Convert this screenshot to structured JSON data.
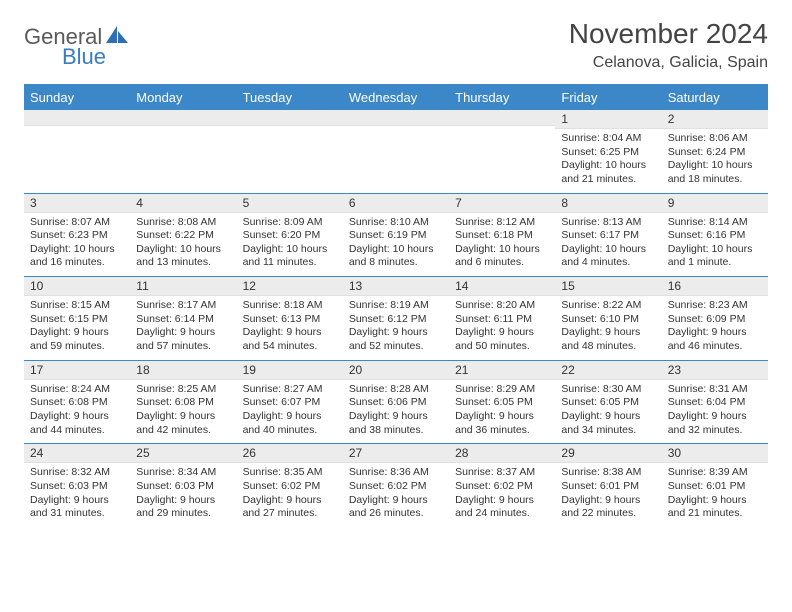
{
  "logo": {
    "part1": "General",
    "part2": "Blue"
  },
  "title": "November 2024",
  "location": "Celanova, Galicia, Spain",
  "colors": {
    "header_bg": "#3c87c7",
    "header_text": "#ffffff",
    "daynum_bg": "#ececec",
    "border": "#3c87c7",
    "text": "#333333",
    "logo_gray": "#5a5a5a",
    "logo_blue": "#3a7cc4"
  },
  "dow": [
    "Sunday",
    "Monday",
    "Tuesday",
    "Wednesday",
    "Thursday",
    "Friday",
    "Saturday"
  ],
  "weeks": [
    [
      {
        "n": "",
        "sr": "",
        "ss": "",
        "dl": ""
      },
      {
        "n": "",
        "sr": "",
        "ss": "",
        "dl": ""
      },
      {
        "n": "",
        "sr": "",
        "ss": "",
        "dl": ""
      },
      {
        "n": "",
        "sr": "",
        "ss": "",
        "dl": ""
      },
      {
        "n": "",
        "sr": "",
        "ss": "",
        "dl": ""
      },
      {
        "n": "1",
        "sr": "Sunrise: 8:04 AM",
        "ss": "Sunset: 6:25 PM",
        "dl": "Daylight: 10 hours and 21 minutes."
      },
      {
        "n": "2",
        "sr": "Sunrise: 8:06 AM",
        "ss": "Sunset: 6:24 PM",
        "dl": "Daylight: 10 hours and 18 minutes."
      }
    ],
    [
      {
        "n": "3",
        "sr": "Sunrise: 8:07 AM",
        "ss": "Sunset: 6:23 PM",
        "dl": "Daylight: 10 hours and 16 minutes."
      },
      {
        "n": "4",
        "sr": "Sunrise: 8:08 AM",
        "ss": "Sunset: 6:22 PM",
        "dl": "Daylight: 10 hours and 13 minutes."
      },
      {
        "n": "5",
        "sr": "Sunrise: 8:09 AM",
        "ss": "Sunset: 6:20 PM",
        "dl": "Daylight: 10 hours and 11 minutes."
      },
      {
        "n": "6",
        "sr": "Sunrise: 8:10 AM",
        "ss": "Sunset: 6:19 PM",
        "dl": "Daylight: 10 hours and 8 minutes."
      },
      {
        "n": "7",
        "sr": "Sunrise: 8:12 AM",
        "ss": "Sunset: 6:18 PM",
        "dl": "Daylight: 10 hours and 6 minutes."
      },
      {
        "n": "8",
        "sr": "Sunrise: 8:13 AM",
        "ss": "Sunset: 6:17 PM",
        "dl": "Daylight: 10 hours and 4 minutes."
      },
      {
        "n": "9",
        "sr": "Sunrise: 8:14 AM",
        "ss": "Sunset: 6:16 PM",
        "dl": "Daylight: 10 hours and 1 minute."
      }
    ],
    [
      {
        "n": "10",
        "sr": "Sunrise: 8:15 AM",
        "ss": "Sunset: 6:15 PM",
        "dl": "Daylight: 9 hours and 59 minutes."
      },
      {
        "n": "11",
        "sr": "Sunrise: 8:17 AM",
        "ss": "Sunset: 6:14 PM",
        "dl": "Daylight: 9 hours and 57 minutes."
      },
      {
        "n": "12",
        "sr": "Sunrise: 8:18 AM",
        "ss": "Sunset: 6:13 PM",
        "dl": "Daylight: 9 hours and 54 minutes."
      },
      {
        "n": "13",
        "sr": "Sunrise: 8:19 AM",
        "ss": "Sunset: 6:12 PM",
        "dl": "Daylight: 9 hours and 52 minutes."
      },
      {
        "n": "14",
        "sr": "Sunrise: 8:20 AM",
        "ss": "Sunset: 6:11 PM",
        "dl": "Daylight: 9 hours and 50 minutes."
      },
      {
        "n": "15",
        "sr": "Sunrise: 8:22 AM",
        "ss": "Sunset: 6:10 PM",
        "dl": "Daylight: 9 hours and 48 minutes."
      },
      {
        "n": "16",
        "sr": "Sunrise: 8:23 AM",
        "ss": "Sunset: 6:09 PM",
        "dl": "Daylight: 9 hours and 46 minutes."
      }
    ],
    [
      {
        "n": "17",
        "sr": "Sunrise: 8:24 AM",
        "ss": "Sunset: 6:08 PM",
        "dl": "Daylight: 9 hours and 44 minutes."
      },
      {
        "n": "18",
        "sr": "Sunrise: 8:25 AM",
        "ss": "Sunset: 6:08 PM",
        "dl": "Daylight: 9 hours and 42 minutes."
      },
      {
        "n": "19",
        "sr": "Sunrise: 8:27 AM",
        "ss": "Sunset: 6:07 PM",
        "dl": "Daylight: 9 hours and 40 minutes."
      },
      {
        "n": "20",
        "sr": "Sunrise: 8:28 AM",
        "ss": "Sunset: 6:06 PM",
        "dl": "Daylight: 9 hours and 38 minutes."
      },
      {
        "n": "21",
        "sr": "Sunrise: 8:29 AM",
        "ss": "Sunset: 6:05 PM",
        "dl": "Daylight: 9 hours and 36 minutes."
      },
      {
        "n": "22",
        "sr": "Sunrise: 8:30 AM",
        "ss": "Sunset: 6:05 PM",
        "dl": "Daylight: 9 hours and 34 minutes."
      },
      {
        "n": "23",
        "sr": "Sunrise: 8:31 AM",
        "ss": "Sunset: 6:04 PM",
        "dl": "Daylight: 9 hours and 32 minutes."
      }
    ],
    [
      {
        "n": "24",
        "sr": "Sunrise: 8:32 AM",
        "ss": "Sunset: 6:03 PM",
        "dl": "Daylight: 9 hours and 31 minutes."
      },
      {
        "n": "25",
        "sr": "Sunrise: 8:34 AM",
        "ss": "Sunset: 6:03 PM",
        "dl": "Daylight: 9 hours and 29 minutes."
      },
      {
        "n": "26",
        "sr": "Sunrise: 8:35 AM",
        "ss": "Sunset: 6:02 PM",
        "dl": "Daylight: 9 hours and 27 minutes."
      },
      {
        "n": "27",
        "sr": "Sunrise: 8:36 AM",
        "ss": "Sunset: 6:02 PM",
        "dl": "Daylight: 9 hours and 26 minutes."
      },
      {
        "n": "28",
        "sr": "Sunrise: 8:37 AM",
        "ss": "Sunset: 6:02 PM",
        "dl": "Daylight: 9 hours and 24 minutes."
      },
      {
        "n": "29",
        "sr": "Sunrise: 8:38 AM",
        "ss": "Sunset: 6:01 PM",
        "dl": "Daylight: 9 hours and 22 minutes."
      },
      {
        "n": "30",
        "sr": "Sunrise: 8:39 AM",
        "ss": "Sunset: 6:01 PM",
        "dl": "Daylight: 9 hours and 21 minutes."
      }
    ]
  ]
}
